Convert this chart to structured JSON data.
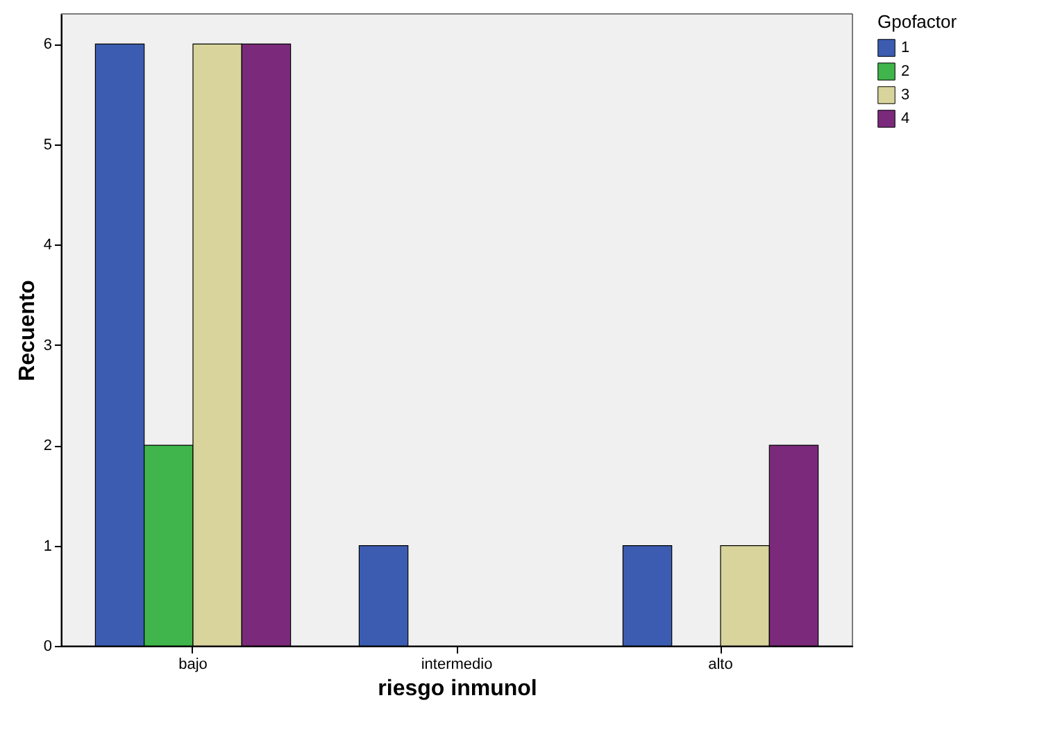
{
  "chart_data": {
    "type": "bar",
    "xlabel": "riesgo inmunol",
    "ylabel": "Recuento",
    "legend_title": "Gpofactor",
    "categories": [
      "bajo",
      "intermedio",
      "alto"
    ],
    "series": [
      {
        "name": "1",
        "color": "#3b5cb0",
        "values": [
          6,
          1,
          1
        ]
      },
      {
        "name": "2",
        "color": "#3fb54b",
        "values": [
          2,
          null,
          null
        ]
      },
      {
        "name": "3",
        "color": "#d8d49c",
        "values": [
          6,
          null,
          1
        ]
      },
      {
        "name": "4",
        "color": "#7b2a7b",
        "values": [
          6,
          null,
          2
        ]
      }
    ],
    "ylim": [
      0,
      6.3
    ],
    "yticks": [
      0,
      1,
      2,
      3,
      4,
      5,
      6
    ],
    "grid": false,
    "legend": "top right"
  }
}
